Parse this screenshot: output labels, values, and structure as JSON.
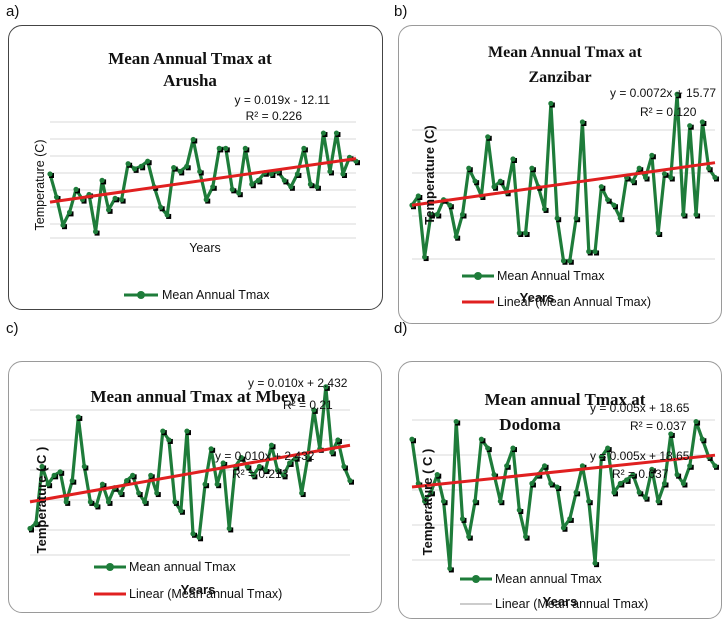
{
  "colors": {
    "series": "#1e7c3a",
    "trend": "#e02020",
    "marker_shadow": "#000000",
    "grid": "#d9d9d9"
  },
  "panels": [
    {
      "label": "a)",
      "title_lines": [
        "Mean Annual Tmax at",
        "Arusha"
      ],
      "equations": [
        {
          "eq": "y = 0.019x - 12.11",
          "r2": "R² = 0.226"
        }
      ],
      "ylabel": "Temperature (C)",
      "xlabel": "Years",
      "legend": [
        "Mean Annual Tmax"
      ]
    },
    {
      "label": "b)",
      "title_lines": [
        "Mean Annual Tmax at",
        "Zanzibar"
      ],
      "equations": [
        {
          "eq": "y = 0.0072x + 15.77",
          "r2": "R² = 0.120"
        }
      ],
      "ylabel": "Temperature (C)",
      "xlabel": "Years",
      "legend": [
        "Mean Annual Tmax",
        "Linear (Mean Annual Tmax)"
      ]
    },
    {
      "label": "c)",
      "title_lines": [
        "Mean annual Tmax at Mbeya"
      ],
      "equations": [
        {
          "eq": "y = 0.010x + 2.432",
          "r2": "R² = 0.21"
        },
        {
          "eq": "y = 0.010x + 2.432",
          "r2": "R² = 0.213"
        }
      ],
      "ylabel": "Temperature ( C )",
      "xlabel": "Years",
      "legend": [
        "Mean annual Tmax",
        "Linear (Mean annual Tmax)"
      ]
    },
    {
      "label": "d)",
      "title_lines": [
        "Mean annual Tmax at",
        "Dodoma"
      ],
      "equations": [
        {
          "eq": "y = 0.005x + 18.65",
          "r2": "R² = 0.037"
        },
        {
          "eq": "y = 0.005x + 18.65",
          "r2": "R² = 0.037"
        }
      ],
      "ylabel": "Temperature ( C )",
      "xlabel": "Years",
      "legend": [
        "Mean annual Tmax",
        "Linear (Mean annual Tmax)"
      ]
    }
  ],
  "chart_data": [
    {
      "type": "line",
      "title": "Mean Annual Tmax at Arusha",
      "xlabel": "Years",
      "ylabel": "Temperature (C)",
      "series": [
        {
          "name": "Mean Annual Tmax",
          "values": [
            0.5,
            0.32,
            0.1,
            0.2,
            0.38,
            0.3,
            0.34,
            0.05,
            0.45,
            0.22,
            0.31,
            0.3,
            0.58,
            0.54,
            0.56,
            0.6,
            0.4,
            0.24,
            0.18,
            0.55,
            0.52,
            0.56,
            0.77,
            0.52,
            0.3,
            0.4,
            0.7,
            0.7,
            0.38,
            0.35,
            0.7,
            0.42,
            0.45,
            0.51,
            0.5,
            0.52,
            0.45,
            0.4,
            0.5,
            0.7,
            0.42,
            0.4,
            0.82,
            0.52,
            0.82,
            0.5,
            0.63,
            0.6
          ]
        },
        {
          "name": "Linear (Mean Annual Tmax)",
          "trend": {
            "start": 0.28,
            "end": 0.62
          }
        }
      ]
    },
    {
      "type": "line",
      "title": "Mean Annual Tmax at Zanzibar",
      "xlabel": "Years",
      "ylabel": "Temperature (C)",
      "series": [
        {
          "name": "Mean Annual Tmax",
          "values": [
            0.35,
            0.4,
            0.07,
            0.3,
            0.3,
            0.38,
            0.35,
            0.18,
            0.3,
            0.55,
            0.48,
            0.4,
            0.72,
            0.45,
            0.48,
            0.42,
            0.6,
            0.2,
            0.2,
            0.55,
            0.45,
            0.33,
            0.9,
            0.28,
            0.05,
            0.05,
            0.28,
            0.8,
            0.1,
            0.1,
            0.45,
            0.38,
            0.35,
            0.28,
            0.5,
            0.48,
            0.55,
            0.5,
            0.62,
            0.2,
            0.52,
            0.5,
            0.95,
            0.3,
            0.78,
            0.3,
            0.8,
            0.55,
            0.5
          ]
        },
        {
          "name": "Linear (Mean Annual Tmax)",
          "trend": {
            "start": 0.35,
            "end": 0.58
          }
        }
      ]
    },
    {
      "type": "line",
      "title": "Mean annual Tmax at Mbeya",
      "xlabel": "Years",
      "ylabel": "Temperature ( C )",
      "series": [
        {
          "name": "Mean annual Tmax",
          "values": [
            0.15,
            0.18,
            0.5,
            0.4,
            0.45,
            0.47,
            0.3,
            0.42,
            0.78,
            0.5,
            0.3,
            0.28,
            0.4,
            0.3,
            0.38,
            0.35,
            0.42,
            0.45,
            0.35,
            0.3,
            0.45,
            0.35,
            0.7,
            0.65,
            0.3,
            0.25,
            0.7,
            0.12,
            0.1,
            0.4,
            0.6,
            0.4,
            0.52,
            0.15,
            0.5,
            0.55,
            0.5,
            0.45,
            0.5,
            0.48,
            0.62,
            0.48,
            0.45,
            0.52,
            0.55,
            0.35,
            0.55,
            0.82,
            0.6,
            0.95,
            0.58,
            0.65,
            0.5,
            0.42
          ]
        },
        {
          "name": "Linear (Mean annual Tmax)",
          "trend": {
            "start": 0.3,
            "end": 0.62
          }
        }
      ]
    },
    {
      "type": "line",
      "title": "Mean annual Tmax at Dodoma",
      "xlabel": "Years",
      "ylabel": "Temperature ( C )",
      "series": [
        {
          "name": "Mean annual Tmax",
          "values": [
            0.75,
            0.5,
            0.4,
            0.45,
            0.55,
            0.4,
            0.02,
            0.85,
            0.3,
            0.2,
            0.4,
            0.75,
            0.7,
            0.55,
            0.4,
            0.6,
            0.7,
            0.35,
            0.2,
            0.5,
            0.55,
            0.6,
            0.5,
            0.48,
            0.25,
            0.3,
            0.45,
            0.6,
            0.4,
            0.05,
            0.65,
            0.7,
            0.45,
            0.5,
            0.52,
            0.55,
            0.45,
            0.42,
            0.58,
            0.4,
            0.5,
            0.78,
            0.55,
            0.5,
            0.6,
            0.85,
            0.75,
            0.65,
            0.6
          ]
        },
        {
          "name": "Linear (Mean annual Tmax)",
          "trend": {
            "start": 0.48,
            "end": 0.66
          }
        }
      ]
    }
  ]
}
